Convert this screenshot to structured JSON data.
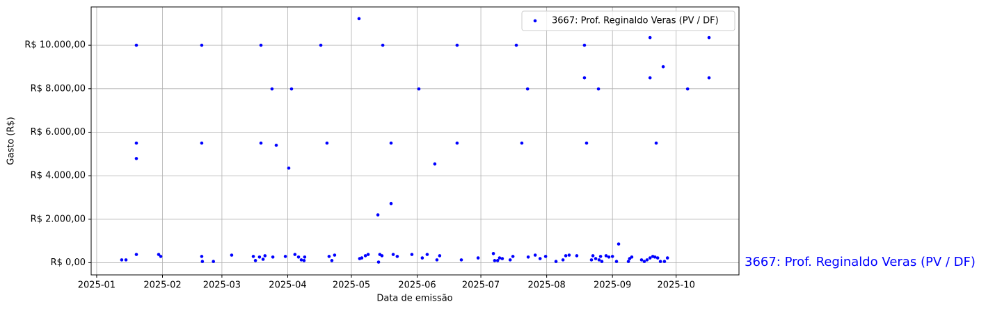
{
  "chart_data": {
    "type": "scatter",
    "xlabel": "Data de emissão",
    "ylabel": "Gasto (R$)",
    "annotation": "3667: Prof. Reginaldo Veras (PV / DF)",
    "legend": "upper right",
    "grid": true,
    "xlim": [
      -2.6,
      302.6
    ],
    "xticks": [
      {
        "value": 0,
        "label": "2025-01"
      },
      {
        "value": 31,
        "label": "2025-02"
      },
      {
        "value": 59,
        "label": "2025-03"
      },
      {
        "value": 90,
        "label": "2025-04"
      },
      {
        "value": 120,
        "label": "2025-05"
      },
      {
        "value": 151,
        "label": "2025-06"
      },
      {
        "value": 181,
        "label": "2025-07"
      },
      {
        "value": 212,
        "label": "2025-08"
      },
      {
        "value": 243,
        "label": "2025-09"
      },
      {
        "value": 273,
        "label": "2025-10"
      }
    ],
    "ylim": [
      -560,
      11760
    ],
    "yticks": [
      {
        "value": 0,
        "label": "R$ 0,00"
      },
      {
        "value": 2000,
        "label": "R$ 2.000,00"
      },
      {
        "value": 4000,
        "label": "R$ 4.000,00"
      },
      {
        "value": 6000,
        "label": "R$ 6.000,00"
      },
      {
        "value": 8000,
        "label": "R$ 8.000,00"
      },
      {
        "value": 10000,
        "label": "R$ 10.000,00"
      }
    ],
    "series": [
      {
        "name": "3667: Prof. Reginaldo Veras (PV / DF)",
        "color": "#0000ff",
        "x": [
          11.8,
          13.8,
          18.7,
          18.7,
          18.7,
          18.7,
          29.2,
          30.2,
          49.5,
          49.5,
          49.5,
          49.8,
          55,
          63.6,
          73.8,
          74.8,
          76.7,
          77.4,
          77.4,
          78.4,
          79.3,
          82.6,
          83,
          84.6,
          88.9,
          90.5,
          91.8,
          93.4,
          95.1,
          96.4,
          97.7,
          98,
          105.6,
          108.5,
          109.5,
          110.8,
          112.1,
          123.6,
          123.9,
          124.9,
          126.6,
          127.9,
          132.5,
          132.8,
          133.4,
          134.4,
          134.8,
          138.7,
          138.7,
          139.7,
          141.6,
          148.5,
          151.8,
          153.4,
          155.7,
          159.3,
          160.3,
          161.6,
          169.8,
          169.8,
          171.8,
          179.7,
          186.9,
          187.5,
          188.9,
          189.8,
          191.1,
          194.8,
          196.1,
          197.7,
          200.3,
          203,
          203.3,
          206.6,
          208.9,
          211.5,
          216.4,
          219.7,
          221,
          222.6,
          226.2,
          229.8,
          229.8,
          230.8,
          233.1,
          233.8,
          235.1,
          236.4,
          236.7,
          237.4,
          238,
          240,
          241.3,
          243,
          244.9,
          245.9,
          250.5,
          251.1,
          252.1,
          256.7,
          258,
          259.3,
          260.7,
          260.7,
          260.7,
          262,
          263,
          263.6,
          264.3,
          265.6,
          266.9,
          267.5,
          268.9,
          278.4,
          288.5,
          288.5
        ],
        "values": [
          130,
          130,
          10000,
          5500,
          4790,
          380,
          380,
          290,
          10000,
          5500,
          290,
          60,
          60,
          350,
          290,
          100,
          260,
          10000,
          5500,
          160,
          320,
          7990,
          260,
          5400,
          290,
          4350,
          7990,
          380,
          260,
          130,
          100,
          260,
          10000,
          5500,
          290,
          100,
          350,
          11220,
          190,
          220,
          320,
          380,
          2200,
          30,
          380,
          320,
          10000,
          5500,
          2720,
          380,
          290,
          380,
          7990,
          220,
          380,
          4540,
          130,
          320,
          10000,
          5500,
          130,
          220,
          420,
          100,
          100,
          220,
          190,
          130,
          290,
          10000,
          5500,
          7990,
          260,
          350,
          190,
          290,
          60,
          130,
          320,
          350,
          320,
          10000,
          8500,
          5500,
          130,
          320,
          190,
          7990,
          130,
          290,
          60,
          320,
          260,
          290,
          60,
          860,
          60,
          190,
          260,
          130,
          60,
          130,
          10350,
          8500,
          220,
          290,
          260,
          5500,
          220,
          60,
          9010,
          60,
          220,
          7990,
          10350,
          8500
        ]
      }
    ]
  }
}
